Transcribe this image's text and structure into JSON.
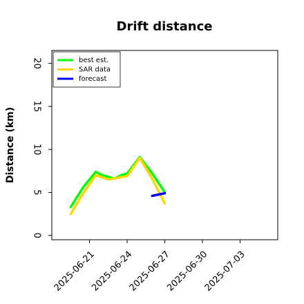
{
  "chart_data": {
    "type": "line",
    "title": "Drift distance",
    "xlabel": "",
    "ylabel": "Distance (km)",
    "xlim": [
      "2025-06-18",
      "2025-07-06"
    ],
    "ylim": [
      -0.5,
      21.5
    ],
    "xticks": [
      "2025-06-21",
      "2025-06-24",
      "2025-06-27",
      "2025-06-30",
      "2025-07-03"
    ],
    "yticks": [
      0,
      5,
      10,
      15,
      20
    ],
    "grid": false,
    "legend_position": "top-left",
    "series": [
      {
        "name": "best est.",
        "color": "#00ff00",
        "x": [
          "2025-06-19 12:00",
          "2025-06-20 12:00",
          "2025-06-21 12:00",
          "2025-06-22 00:00",
          "2025-06-23 00:00",
          "2025-06-23 12:00",
          "2025-06-24 00:00",
          "2025-06-25 00:00",
          "2025-06-26 00:00",
          "2025-06-27 00:00"
        ],
        "values": [
          3.3,
          5.6,
          7.4,
          7.0,
          6.6,
          7.0,
          7.2,
          9.1,
          7.2,
          5.0
        ]
      },
      {
        "name": "SAR data",
        "color": "#ffd700",
        "x": [
          "2025-06-19 12:00",
          "2025-06-20 12:00",
          "2025-06-21 12:00",
          "2025-06-22 12:00",
          "2025-06-24 00:00",
          "2025-06-25 00:00",
          "2025-06-26 00:00",
          "2025-06-27 00:00"
        ],
        "values": [
          2.5,
          4.9,
          7.0,
          6.5,
          6.9,
          9.0,
          6.6,
          3.7
        ]
      },
      {
        "name": "forecast",
        "color": "#0000ff",
        "x": [
          "2025-06-26 00:00",
          "2025-06-27 00:00"
        ],
        "values": [
          4.6,
          4.9
        ]
      }
    ]
  }
}
